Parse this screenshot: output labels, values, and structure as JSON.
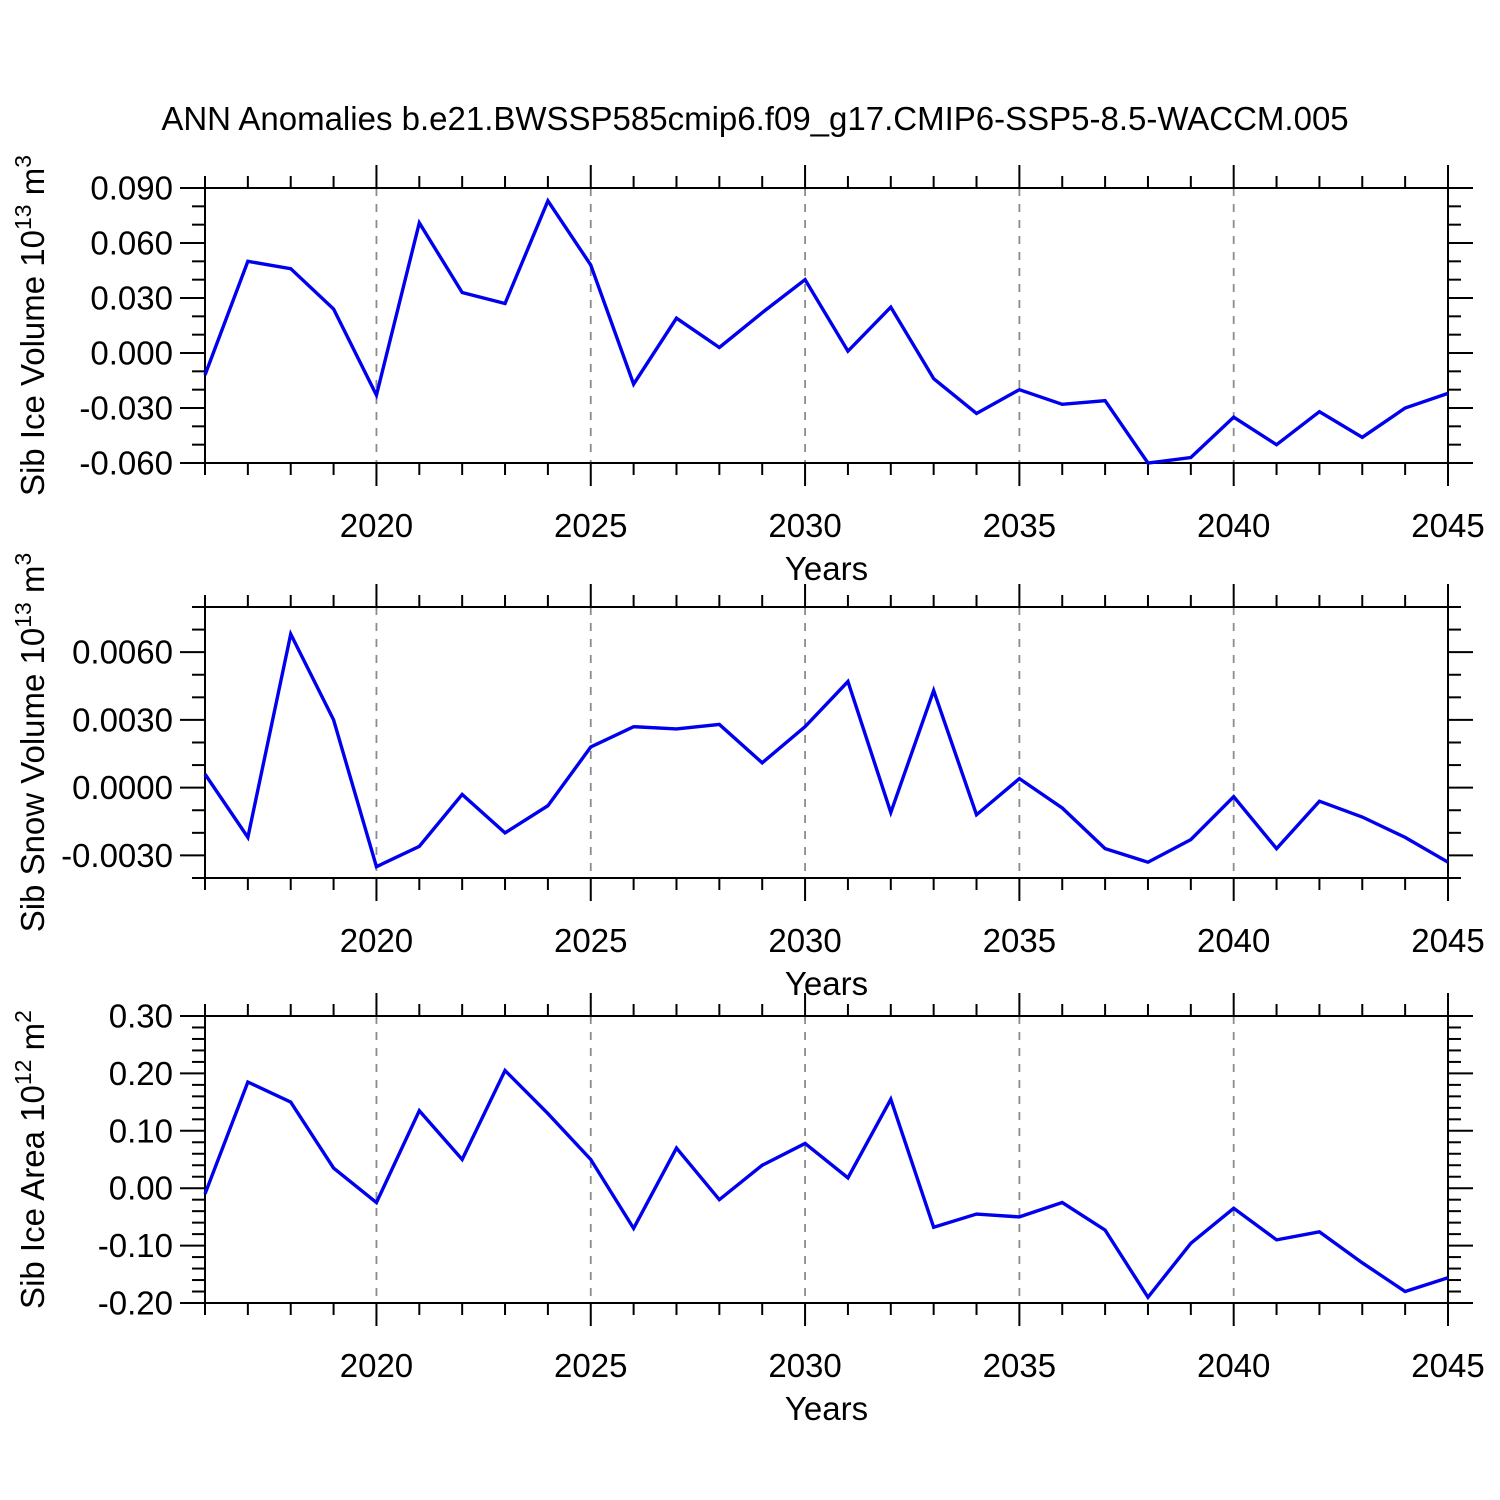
{
  "title": "ANN Anomalies b.e21.BWSSP585cmip6.f09_g17.CMIP6-SSP5-8.5-WACCM.005",
  "x_axis": {
    "label": "Years",
    "range": [
      2016,
      2045
    ],
    "years": [
      2016,
      2017,
      2018,
      2019,
      2020,
      2021,
      2022,
      2023,
      2024,
      2025,
      2026,
      2027,
      2028,
      2029,
      2030,
      2031,
      2032,
      2033,
      2034,
      2035,
      2036,
      2037,
      2038,
      2039,
      2040,
      2041,
      2042,
      2043,
      2044,
      2045
    ],
    "major_tick_years": [
      2020,
      2025,
      2030,
      2035,
      2040,
      2045
    ],
    "major_tick_labels": [
      "2020",
      "2025",
      "2030",
      "2035",
      "2040",
      "2045"
    ],
    "gridline_years": [
      2020,
      2025,
      2030,
      2035,
      2040
    ]
  },
  "colors": {
    "line": "#0000ee",
    "axis": "#000000",
    "grid": "#8c8c8c",
    "text": "#000000",
    "background": "#ffffff"
  },
  "chart_data": [
    {
      "type": "line",
      "series_name": "Sib Ice Volume",
      "ylabel_plain": "Sib Ice Volume 10^13 m^3",
      "ylabel_parts": [
        {
          "t": "Sib Ice Volume 10"
        },
        {
          "t": "13",
          "sup": true
        },
        {
          "t": " m"
        },
        {
          "t": "3",
          "sup": true
        }
      ],
      "xlabel": "Years",
      "ylim": [
        -0.06,
        0.09
      ],
      "ytick_values": [
        0.09,
        0.06,
        0.03,
        0.0,
        -0.03,
        -0.06
      ],
      "ytick_labels": [
        "0.090",
        "0.060",
        "0.030",
        "0.000",
        "-0.030",
        "-0.060"
      ],
      "y_minor_step": 0.01,
      "grid": "vertical-dashed",
      "legend": "none",
      "values": [
        -0.012,
        0.05,
        0.046,
        0.024,
        -0.023,
        0.071,
        0.033,
        0.027,
        0.083,
        0.048,
        -0.017,
        0.019,
        0.003,
        0.022,
        0.04,
        0.001,
        0.025,
        -0.014,
        -0.033,
        -0.02,
        -0.028,
        -0.026,
        -0.06,
        -0.057,
        -0.035,
        -0.05,
        -0.032,
        -0.046,
        -0.03,
        -0.022
      ]
    },
    {
      "type": "line",
      "series_name": "Sib Snow Volume",
      "ylabel_plain": "Sib Snow Volume 10^13 m^3",
      "ylabel_parts": [
        {
          "t": "Sib Snow Volume 10"
        },
        {
          "t": "13",
          "sup": true
        },
        {
          "t": " m"
        },
        {
          "t": "3",
          "sup": true
        }
      ],
      "xlabel": "Years",
      "ylim": [
        -0.004,
        0.008
      ],
      "ytick_values": [
        0.006,
        0.003,
        0.0,
        -0.003
      ],
      "ytick_labels": [
        "0.0060",
        "0.0030",
        "0.0000",
        "-0.0030"
      ],
      "y_minor_step": 0.001,
      "grid": "vertical-dashed",
      "legend": "none",
      "values": [
        0.0006,
        -0.0022,
        0.0068,
        0.003,
        -0.0035,
        -0.0026,
        -0.0003,
        -0.002,
        -0.0008,
        0.0018,
        0.0027,
        0.0026,
        0.0028,
        0.0011,
        0.0027,
        0.0047,
        -0.0011,
        0.0043,
        -0.0012,
        0.0004,
        -0.0009,
        -0.0027,
        -0.0033,
        -0.0023,
        -0.0004,
        -0.0027,
        -0.0006,
        -0.0013,
        -0.0022,
        -0.0033
      ]
    },
    {
      "type": "line",
      "series_name": "Sib Ice Area",
      "ylabel_plain": "Sib Ice Area 10^12 m^2",
      "ylabel_parts": [
        {
          "t": "Sib Ice Area 10"
        },
        {
          "t": "12",
          "sup": true
        },
        {
          "t": " m"
        },
        {
          "t": "2",
          "sup": true
        }
      ],
      "xlabel": "Years",
      "ylim": [
        -0.2,
        0.3
      ],
      "ytick_values": [
        0.3,
        0.2,
        0.1,
        0.0,
        -0.1,
        -0.2
      ],
      "ytick_labels": [
        "0.30",
        "0.20",
        "0.10",
        "0.00",
        "-0.10",
        "-0.20"
      ],
      "y_minor_step": 0.02,
      "grid": "vertical-dashed",
      "legend": "none",
      "values": [
        -0.01,
        0.185,
        0.15,
        0.035,
        -0.025,
        0.135,
        0.05,
        0.205,
        0.13,
        0.05,
        -0.07,
        0.07,
        -0.02,
        0.04,
        0.078,
        0.018,
        0.155,
        -0.068,
        -0.045,
        -0.05,
        -0.025,
        -0.073,
        -0.19,
        -0.096,
        -0.035,
        -0.09,
        -0.076,
        -0.13,
        -0.18,
        -0.156
      ]
    }
  ]
}
